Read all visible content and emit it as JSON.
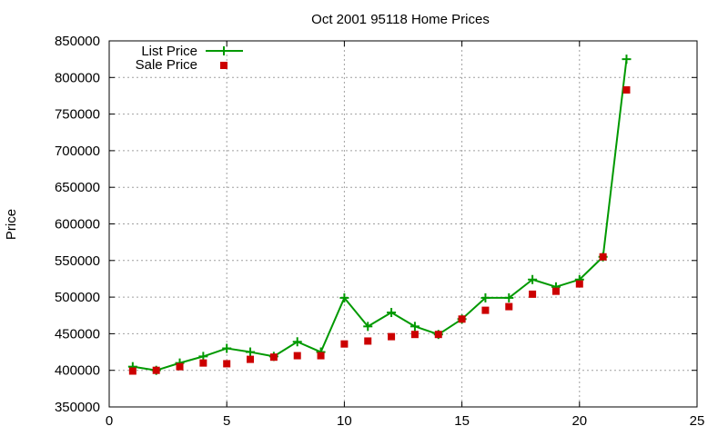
{
  "chart_data": {
    "type": "line",
    "title": "Oct 2001 95118 Home Prices",
    "xlabel": "",
    "ylabel": "Price",
    "xlim": [
      0,
      25
    ],
    "ylim": [
      350000,
      850000
    ],
    "x_ticks": [
      0,
      5,
      10,
      15,
      20,
      25
    ],
    "y_ticks": [
      350000,
      400000,
      450000,
      500000,
      550000,
      600000,
      650000,
      700000,
      750000,
      800000,
      850000
    ],
    "grid": true,
    "legend_position": "top-left",
    "x": [
      1,
      2,
      3,
      4,
      5,
      6,
      7,
      8,
      9,
      10,
      11,
      12,
      13,
      14,
      15,
      16,
      17,
      18,
      19,
      20,
      21,
      22
    ],
    "series": [
      {
        "name": "List Price",
        "style": "line-with-plus-markers",
        "color": "#009900",
        "values": [
          405000,
          400000,
          410000,
          419000,
          430000,
          425000,
          419000,
          439000,
          425000,
          499000,
          460000,
          479000,
          460000,
          449000,
          470000,
          499000,
          499000,
          524000,
          514000,
          524000,
          555000,
          825000
        ]
      },
      {
        "name": "Sale Price",
        "style": "square-markers",
        "color": "#cc0000",
        "values": [
          399000,
          400000,
          405000,
          410000,
          409000,
          415000,
          418000,
          420000,
          420000,
          436000,
          440000,
          446000,
          449000,
          449000,
          470000,
          482000,
          487000,
          504000,
          508000,
          518000,
          555000,
          783000
        ]
      }
    ]
  }
}
